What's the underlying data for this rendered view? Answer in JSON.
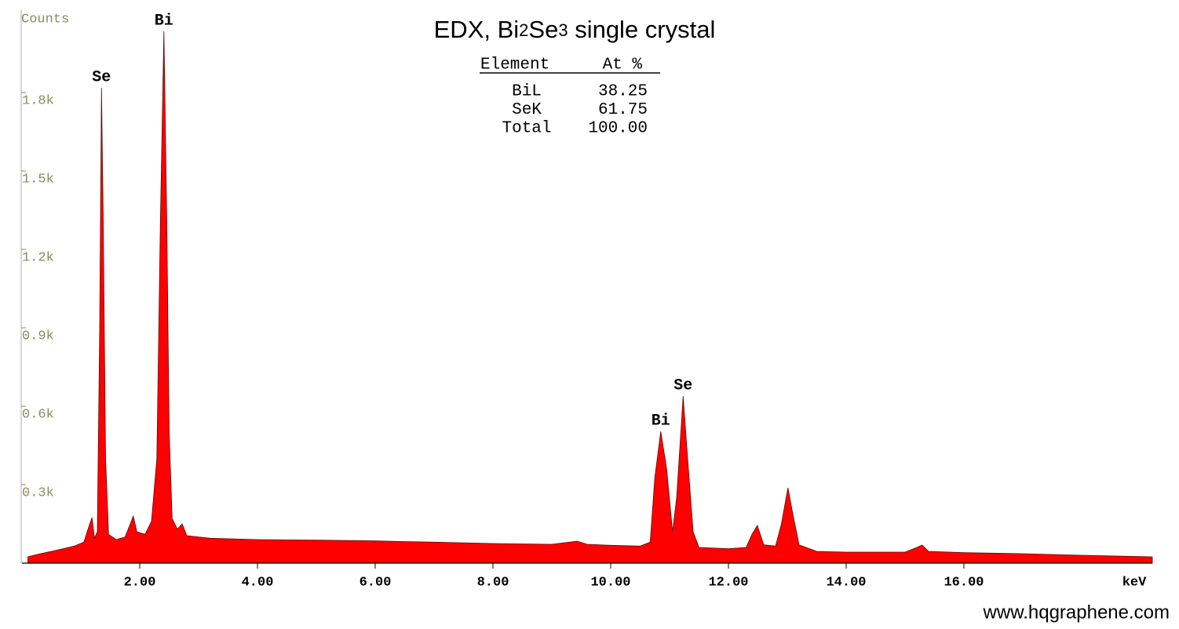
{
  "chart_data": {
    "type": "area",
    "title": "EDX, Bi2Se3 single crystal",
    "ylabel": "Counts",
    "xlabel": "keV",
    "color": "#ff0000",
    "x": [
      0.1,
      0.3,
      0.5,
      0.7,
      0.9,
      1.05,
      1.15,
      1.19,
      1.23,
      1.28,
      1.32,
      1.35,
      1.38,
      1.42,
      1.47,
      1.6,
      1.75,
      1.84,
      1.89,
      1.95,
      2.09,
      2.2,
      2.29,
      2.35,
      2.41,
      2.46,
      2.5,
      2.55,
      2.64,
      2.72,
      2.8,
      3.2,
      4,
      5,
      6,
      7,
      8,
      9,
      9.3,
      9.43,
      9.6,
      10,
      10.5,
      10.67,
      10.75,
      10.85,
      10.95,
      11.05,
      11.12,
      11.23,
      11.3,
      11.4,
      11.5,
      12,
      12.3,
      12.4,
      12.49,
      12.6,
      12.8,
      12.9,
      13.01,
      13.1,
      13.2,
      13.5,
      14,
      15,
      15.2,
      15.29,
      15.4,
      16,
      17,
      18,
      19.2
    ],
    "values": [
      24,
      35,
      45,
      55,
      66,
      80,
      150,
      174,
      95,
      120,
      900,
      1818,
      1300,
      400,
      110,
      90,
      100,
      150,
      180,
      120,
      110,
      160,
      400,
      1300,
      2034,
      1300,
      500,
      170,
      130,
      150,
      105,
      95,
      90,
      88,
      85,
      80,
      75,
      72,
      80,
      84,
      72,
      68,
      65,
      80,
      330,
      504,
      360,
      120,
      250,
      639,
      420,
      120,
      60,
      55,
      60,
      110,
      144,
      70,
      65,
      150,
      288,
      180,
      70,
      45,
      42,
      42,
      60,
      69,
      45,
      40,
      36,
      30,
      24
    ],
    "xlim": [
      0,
      19.2
    ],
    "ylim": [
      0,
      2100
    ],
    "xticks": [
      {
        "value": 2,
        "label": "2.00"
      },
      {
        "value": 4,
        "label": "4.00"
      },
      {
        "value": 6,
        "label": "6.00"
      },
      {
        "value": 8,
        "label": "8.00"
      },
      {
        "value": 10,
        "label": "10.00"
      },
      {
        "value": 12,
        "label": "12.00"
      },
      {
        "value": 14,
        "label": "14.00"
      },
      {
        "value": 16,
        "label": "16.00"
      }
    ],
    "yticks": [
      {
        "value": 300,
        "label": "0.3k"
      },
      {
        "value": 600,
        "label": "0.6k"
      },
      {
        "value": 900,
        "label": "0.9k"
      },
      {
        "value": 1200,
        "label": "1.2k"
      },
      {
        "value": 1500,
        "label": "1.5k"
      },
      {
        "value": 1800,
        "label": "1.8k"
      }
    ],
    "annotations": [
      {
        "text": "Se",
        "x": 1.35
      },
      {
        "text": "Bi",
        "x": 2.41
      },
      {
        "text": "Bi",
        "x": 10.85
      },
      {
        "text": "Se",
        "x": 11.23
      }
    ],
    "table": {
      "header": [
        "Element",
        "At %"
      ],
      "rows": [
        [
          "BiL",
          "38.25"
        ],
        [
          "SeK",
          "61.75"
        ],
        [
          "Total",
          "100.00"
        ]
      ]
    },
    "watermark": "www.hqgraphene.com"
  }
}
